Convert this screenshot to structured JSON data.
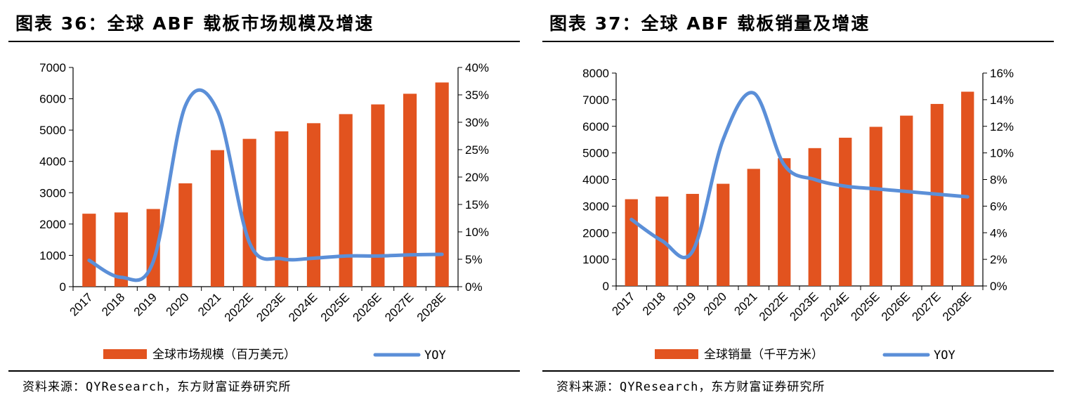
{
  "colors": {
    "bar": "#E2531F",
    "line": "#5B8FD8",
    "axis": "#000000"
  },
  "charts": [
    {
      "figure_title": "图表 36：全球 ABF 载板市场规模及增速",
      "source": "资料来源：QYResearch，东方财富证券研究所",
      "chart_data": {
        "type": "bar",
        "categories": [
          "2017",
          "2018",
          "2019",
          "2020",
          "2021",
          "2022E",
          "2023E",
          "2024E",
          "2025E",
          "2026E",
          "2027E",
          "2028E"
        ],
        "series": [
          {
            "name": "全球市场规模（百万美元）",
            "type": "bar",
            "axis": "left",
            "values": [
              2330,
              2370,
              2480,
              3300,
              4360,
              4720,
              4960,
              5220,
              5510,
              5820,
              6160,
              6520
            ]
          },
          {
            "name": "YOY",
            "type": "line",
            "axis": "right",
            "values": [
              0.048,
              0.017,
              0.046,
              0.33,
              0.321,
              0.08,
              0.051,
              0.052,
              0.056,
              0.056,
              0.058,
              0.059
            ]
          }
        ],
        "ylim_left": [
          0,
          7000
        ],
        "yticks_left": [
          "0",
          "1000",
          "2000",
          "3000",
          "4000",
          "5000",
          "6000",
          "7000"
        ],
        "ylim_right": [
          0,
          0.4
        ],
        "yticks_right": [
          "0%",
          "5%",
          "10%",
          "15%",
          "20%",
          "25%",
          "30%",
          "35%",
          "40%"
        ],
        "xlabel": "",
        "ylabel": "",
        "legend_position": "bottom"
      }
    },
    {
      "figure_title": "图表 37：全球 ABF 载板销量及增速",
      "source": "资料来源：QYResearch，东方财富证券研究所",
      "chart_data": {
        "type": "bar",
        "categories": [
          "2017",
          "2018",
          "2019",
          "2020",
          "2021",
          "2022E",
          "2023E",
          "2024E",
          "2025E",
          "2026E",
          "2027E",
          "2028E"
        ],
        "series": [
          {
            "name": "全球销量（千平方米）",
            "type": "bar",
            "axis": "left",
            "values": [
              3260,
              3360,
              3460,
              3840,
              4400,
              4800,
              5180,
              5570,
              5980,
              6400,
              6840,
              7300
            ]
          },
          {
            "name": "YOY",
            "type": "line",
            "axis": "right",
            "values": [
              0.05,
              0.034,
              0.026,
              0.11,
              0.145,
              0.091,
              0.08,
              0.075,
              0.073,
              0.071,
              0.069,
              0.067
            ]
          }
        ],
        "ylim_left": [
          0,
          8000
        ],
        "yticks_left": [
          "0",
          "1000",
          "2000",
          "3000",
          "4000",
          "5000",
          "6000",
          "7000",
          "8000"
        ],
        "ylim_right": [
          0,
          0.16
        ],
        "yticks_right": [
          "0%",
          "2%",
          "4%",
          "6%",
          "8%",
          "10%",
          "12%",
          "14%",
          "16%"
        ],
        "xlabel": "",
        "ylabel": "",
        "legend_position": "bottom"
      }
    }
  ]
}
